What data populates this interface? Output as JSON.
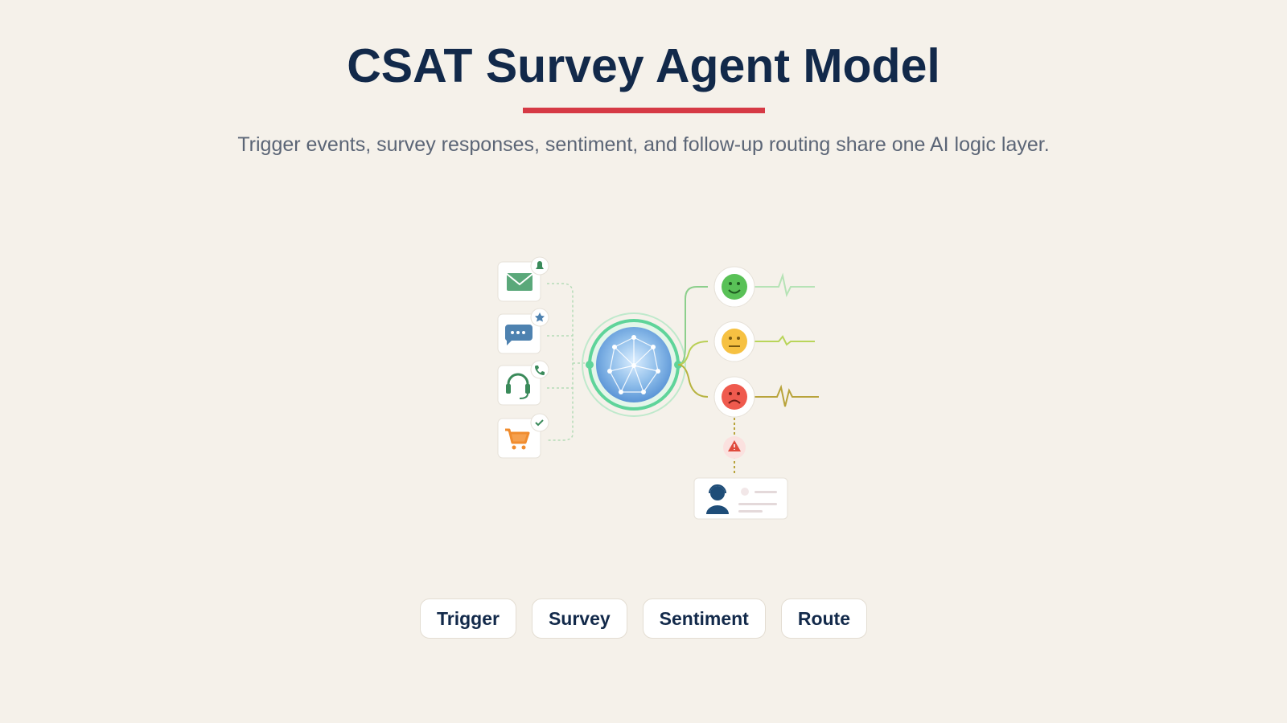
{
  "header": {
    "title": "CSAT Survey Agent Model",
    "subtitle": "Trigger events, survey responses, sentiment, and follow-up routing share one AI logic layer."
  },
  "tags": [
    "Trigger",
    "Survey",
    "Sentiment",
    "Route"
  ]
}
